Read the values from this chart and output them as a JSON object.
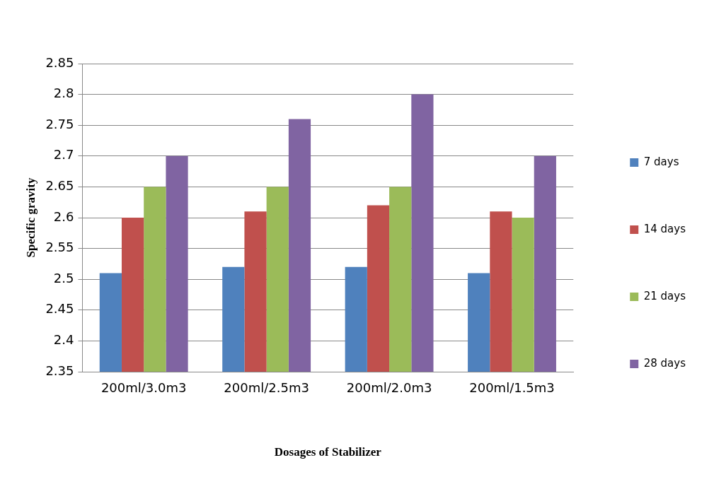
{
  "chart_data": {
    "type": "bar",
    "xlabel": "Dosages of Stabilizer",
    "ylabel": "Specific gravity",
    "categories": [
      "200ml/3.0m3",
      "200ml/2.5m3",
      "200ml/2.0m3",
      "200ml/1.5m3"
    ],
    "series": [
      {
        "name": "7 days",
        "color": "#4f81bd",
        "values": [
          2.51,
          2.52,
          2.52,
          2.51
        ]
      },
      {
        "name": "14 days",
        "color": "#c0504d",
        "values": [
          2.6,
          2.61,
          2.62,
          2.61
        ]
      },
      {
        "name": "21 days",
        "color": "#9bbb59",
        "values": [
          2.65,
          2.65,
          2.65,
          2.6
        ]
      },
      {
        "name": "28 days",
        "color": "#8064a2",
        "values": [
          2.7,
          2.76,
          2.8,
          2.7
        ]
      }
    ],
    "ylim": [
      2.35,
      2.85
    ],
    "yticks": [
      2.35,
      2.4,
      2.45,
      2.5,
      2.55,
      2.6,
      2.65,
      2.7,
      2.75,
      2.8,
      2.85
    ],
    "grid": "y",
    "legend": "right"
  }
}
